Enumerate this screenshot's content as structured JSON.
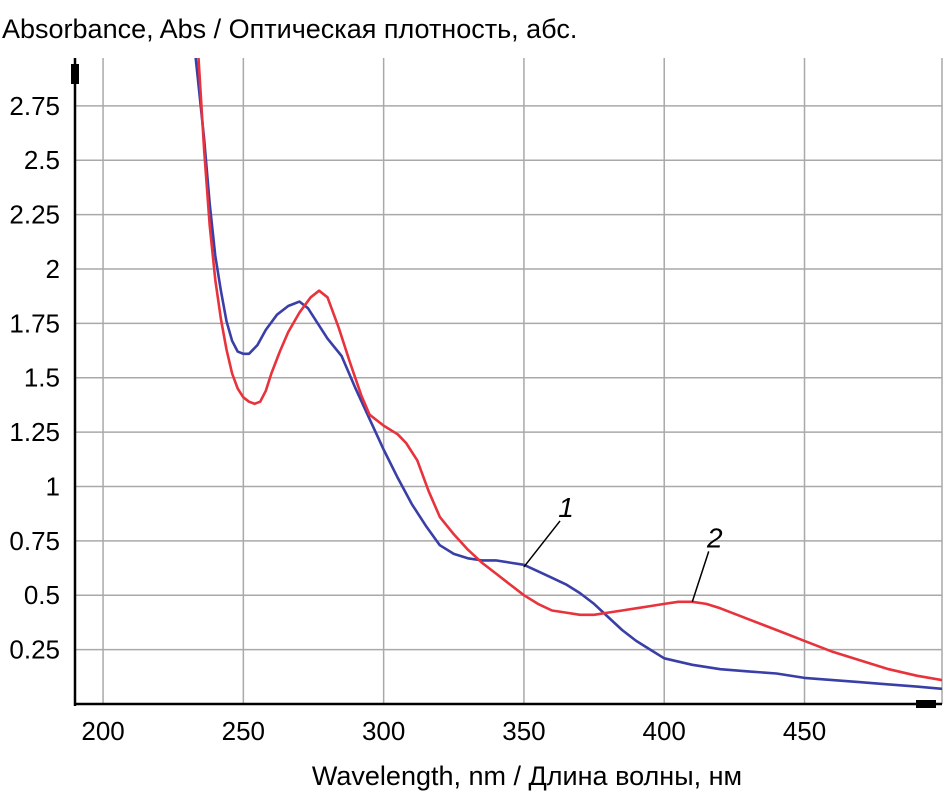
{
  "chart_data": {
    "type": "line",
    "title": "",
    "ylabel": "Absorbance, Abs / Оптическая плотность, абс.",
    "xlabel": "Wavelength, nm / Длина волны, нм",
    "xlim": [
      190,
      499
    ],
    "ylim": [
      0,
      2.97
    ],
    "x_ticks": [
      200,
      250,
      300,
      350,
      400,
      450
    ],
    "y_ticks": [
      0.25,
      0.5,
      0.75,
      1,
      1.25,
      1.5,
      1.75,
      2,
      2.25,
      2.5,
      2.75
    ],
    "grid": true,
    "legend": "none",
    "series": [
      {
        "color": "#3a3fa8",
        "x": [
          233,
          236,
          238,
          240,
          242,
          244,
          246,
          248,
          250,
          252,
          255,
          258,
          262,
          266,
          270,
          273,
          276,
          280,
          285,
          290,
          295,
          300,
          305,
          310,
          315,
          320,
          325,
          330,
          335,
          340,
          345,
          350,
          355,
          360,
          365,
          370,
          375,
          380,
          385,
          390,
          395,
          400,
          410,
          420,
          430,
          440,
          450,
          460,
          470,
          480,
          490,
          499
        ],
        "y": [
          2.97,
          2.6,
          2.3,
          2.06,
          1.9,
          1.76,
          1.67,
          1.62,
          1.61,
          1.61,
          1.65,
          1.72,
          1.79,
          1.83,
          1.85,
          1.82,
          1.76,
          1.68,
          1.6,
          1.45,
          1.31,
          1.17,
          1.04,
          0.92,
          0.82,
          0.73,
          0.69,
          0.67,
          0.66,
          0.66,
          0.65,
          0.64,
          0.61,
          0.58,
          0.55,
          0.51,
          0.46,
          0.4,
          0.34,
          0.29,
          0.25,
          0.21,
          0.18,
          0.16,
          0.15,
          0.14,
          0.12,
          0.11,
          0.1,
          0.09,
          0.08,
          0.07
        ]
      },
      {
        "color": "#e8323c",
        "x": [
          234,
          236,
          238,
          240,
          242,
          244,
          246,
          248,
          250,
          252,
          254,
          256,
          258,
          260,
          263,
          266,
          270,
          274,
          277,
          280,
          284,
          288,
          292,
          295,
          300,
          305,
          308,
          312,
          316,
          320,
          325,
          330,
          335,
          340,
          345,
          350,
          355,
          360,
          365,
          370,
          375,
          380,
          385,
          390,
          395,
          400,
          405,
          410,
          415,
          420,
          430,
          440,
          450,
          460,
          470,
          480,
          490,
          499
        ],
        "y": [
          2.97,
          2.55,
          2.2,
          1.95,
          1.77,
          1.63,
          1.52,
          1.45,
          1.41,
          1.39,
          1.38,
          1.39,
          1.44,
          1.52,
          1.62,
          1.71,
          1.8,
          1.87,
          1.9,
          1.87,
          1.73,
          1.57,
          1.42,
          1.33,
          1.28,
          1.24,
          1.2,
          1.12,
          0.98,
          0.86,
          0.78,
          0.71,
          0.65,
          0.6,
          0.55,
          0.5,
          0.46,
          0.43,
          0.42,
          0.41,
          0.41,
          0.42,
          0.43,
          0.44,
          0.45,
          0.46,
          0.47,
          0.47,
          0.46,
          0.44,
          0.39,
          0.34,
          0.29,
          0.24,
          0.2,
          0.16,
          0.13,
          0.11
        ]
      }
    ],
    "annotations": [
      {
        "text": "1",
        "x": 365,
        "y": 0.86,
        "pointer_x": 350,
        "pointer_y": 0.63
      },
      {
        "text": "2",
        "x": 418,
        "y": 0.72,
        "pointer_x": 410,
        "pointer_y": 0.47
      }
    ]
  }
}
